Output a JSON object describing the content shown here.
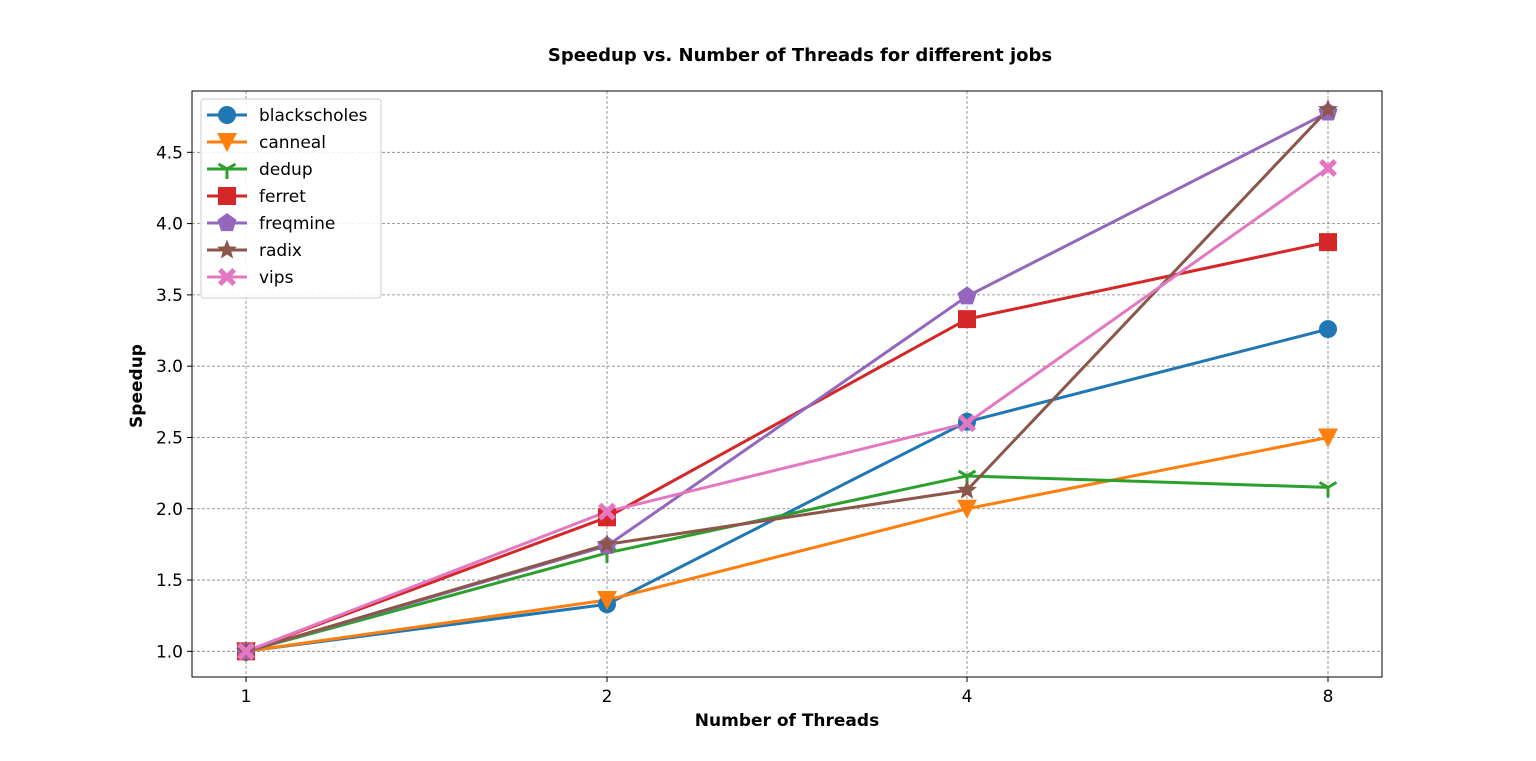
{
  "chart_data": {
    "type": "line",
    "title": "Speedup vs. Number of Threads for different jobs",
    "xlabel": "Number of Threads",
    "ylabel": "Speedup",
    "x": [
      1,
      2,
      4,
      8
    ],
    "x_scale": "log2",
    "x_tick_labels": [
      "1",
      "2",
      "4",
      "8"
    ],
    "ylim": [
      0.82,
      4.93
    ],
    "y_ticks": [
      1.0,
      1.5,
      2.0,
      2.5,
      3.0,
      3.5,
      4.0,
      4.5
    ],
    "y_tick_labels": [
      "1.0",
      "1.5",
      "2.0",
      "2.5",
      "3.0",
      "3.5",
      "4.0",
      "4.5"
    ],
    "grid": true,
    "legend_position": "top-left",
    "series": [
      {
        "name": "blackscholes",
        "values": [
          1.0,
          1.33,
          2.61,
          3.26
        ],
        "color": "#1f77b4",
        "marker": "circle"
      },
      {
        "name": "canneal",
        "values": [
          1.0,
          1.36,
          2.0,
          2.5
        ],
        "color": "#ff7f0e",
        "marker": "triangle-down"
      },
      {
        "name": "dedup",
        "values": [
          1.0,
          1.69,
          2.23,
          2.15
        ],
        "color": "#2ca02c",
        "marker": "tri-down"
      },
      {
        "name": "ferret",
        "values": [
          1.0,
          1.94,
          3.33,
          3.87
        ],
        "color": "#d62728",
        "marker": "square"
      },
      {
        "name": "freqmine",
        "values": [
          1.0,
          1.74,
          3.49,
          4.78
        ],
        "color": "#9467bd",
        "marker": "pentagon"
      },
      {
        "name": "radix",
        "values": [
          1.0,
          1.75,
          2.13,
          4.8
        ],
        "color": "#8c564b",
        "marker": "star"
      },
      {
        "name": "vips",
        "values": [
          1.0,
          1.98,
          2.6,
          4.39
        ],
        "color": "#e377c2",
        "marker": "x-filled"
      }
    ]
  }
}
